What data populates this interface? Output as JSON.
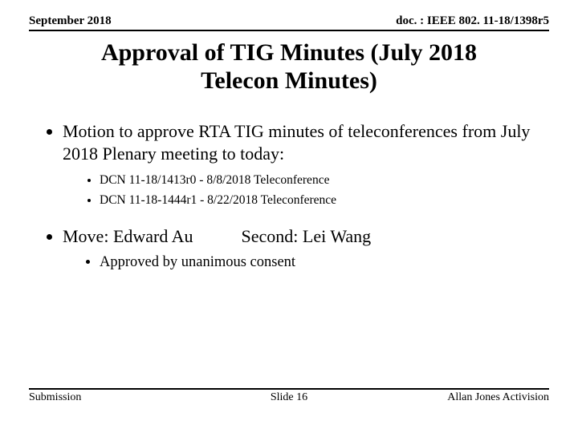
{
  "header": {
    "date": "September 2018",
    "docref": "doc. : IEEE 802. 11-18/1398r5"
  },
  "title": {
    "line1": "Approval of  TIG Minutes (July 2018",
    "line2": "Telecon Minutes)"
  },
  "body": {
    "motion": "Motion to approve RTA TIG minutes of teleconferences from July 2018 Plenary meeting to today:",
    "dcn1": "DCN 11-18/1413r0 - 8/8/2018 Teleconference",
    "dcn2": "DCN 11-18-1444r1 - 8/22/2018 Teleconference",
    "move": "Move: Edward Au",
    "second": "Second: Lei Wang",
    "approved": "Approved by unanimous consent"
  },
  "footer": {
    "left": "Submission",
    "center": "Slide 16",
    "right": "Allan Jones Activision"
  }
}
